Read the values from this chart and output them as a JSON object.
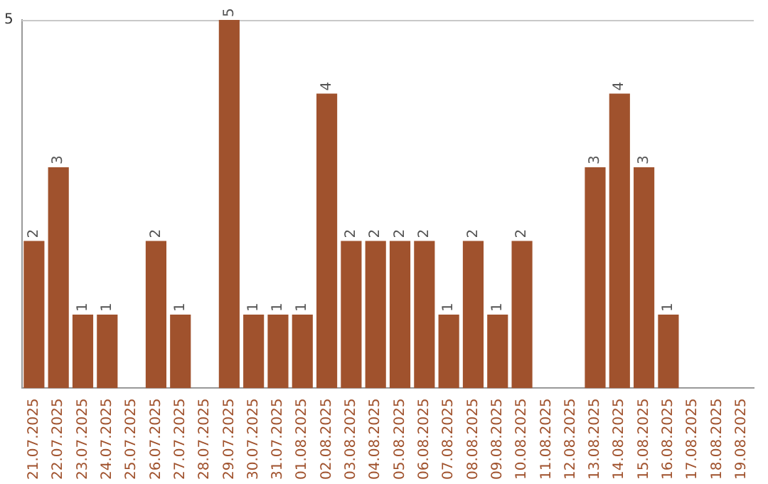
{
  "chart_data": {
    "type": "bar",
    "categories": [
      "21.07.2025",
      "22.07.2025",
      "23.07.2025",
      "24.07.2025",
      "25.07.2025",
      "26.07.2025",
      "27.07.2025",
      "28.07.2025",
      "29.07.2025",
      "30.07.2025",
      "31.07.2025",
      "01.08.2025",
      "02.08.2025",
      "03.08.2025",
      "04.08.2025",
      "05.08.2025",
      "06.08.2025",
      "07.08.2025",
      "08.08.2025",
      "09.08.2025",
      "10.08.2025",
      "11.08.2025",
      "12.08.2025",
      "13.08.2025",
      "14.08.2025",
      "15.08.2025",
      "16.08.2025",
      "17.08.2025",
      "18.08.2025",
      "19.08.2025"
    ],
    "values": [
      2,
      3,
      1,
      1,
      0,
      2,
      1,
      0,
      5,
      1,
      1,
      1,
      4,
      2,
      2,
      2,
      2,
      1,
      2,
      1,
      2,
      0,
      0,
      3,
      4,
      3,
      1,
      0,
      0,
      0
    ],
    "value_labels": [
      "2",
      "3",
      "1",
      "1",
      null,
      "2",
      "1",
      null,
      "5",
      "1",
      "1",
      "1",
      "4",
      "2",
      "2",
      "2",
      "2",
      "1",
      "2",
      "1",
      "2",
      null,
      null,
      "3",
      "4",
      "3",
      "1",
      null,
      null,
      null
    ],
    "color": "#a0522d",
    "ylim": [
      0,
      5
    ],
    "yticks": [
      5
    ],
    "legend": false
  }
}
